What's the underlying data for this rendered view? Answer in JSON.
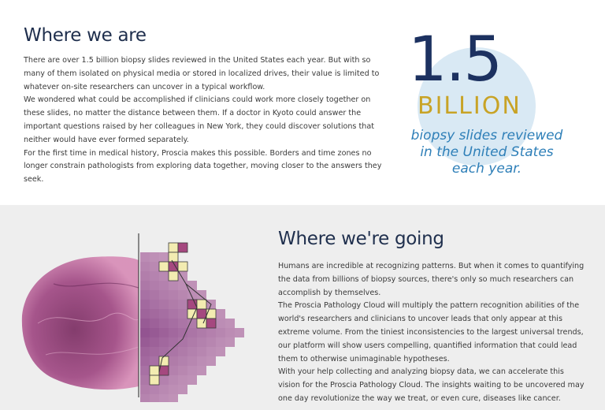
{
  "section_where_we_are": {
    "title": "Where we are",
    "paragraphs": [
      "There are over 1.5 billion biopsy slides reviewed in the United States each year. But with so many of them isolated on physical media or stored in localized drives, their value is limited to whatever on-site researchers can uncover in a typical workflow.",
      "We wondered what could be accomplished if clinicians could work more closely together on these slides, no matter the distance between them. If a doctor in Kyoto could answer the important questions raised by her colleagues in New York, they could discover solutions that neither would have ever formed separately.",
      "For the first time in medical history, Proscia makes this possible. Borders and time zones no longer constrain pathologists from exploring data together, moving closer to the answers they seek."
    ]
  },
  "stat": {
    "number": "1.5",
    "unit": "BILLION",
    "caption_lines": [
      "biopsy slides reviewed",
      "in the United States",
      "each year."
    ],
    "colors": {
      "number": "#1c3160",
      "unit": "#c8a326",
      "caption": "#2e7fb8",
      "circle": "#d9e9f4"
    }
  },
  "section_where_going": {
    "title": "Where we're going",
    "paragraphs": [
      "Humans are incredible at recognizing patterns. But when it comes to quantifying the data from billions of biopsy sources, there's only so much researchers can accomplish by themselves.",
      "The Proscia Pathology Cloud will multiply the pattern recognition abilities of the world's researchers and clinicians to uncover leads that only appear at this extreme volume. From the tiniest inconsistencies to the largest universal trends, our platform will show users compelling, quantified information that could lead them to otherwise unimaginable hypotheses.",
      "With your help collecting and analyzing biopsy data, we can accelerate this vision for the Proscia Pathology Cloud. The insights waiting to be uncovered may one day revolutionize the way we treat, or even cure, diseases like cancer."
    ]
  },
  "illustration": {
    "icon": "tissue-pixelation-illustration",
    "colors": {
      "tissue_dark": "#8a3f74",
      "tissue_light": "#d27fae",
      "pixel_highlight": "#f3ecb1",
      "line": "#3a3a3a"
    }
  }
}
